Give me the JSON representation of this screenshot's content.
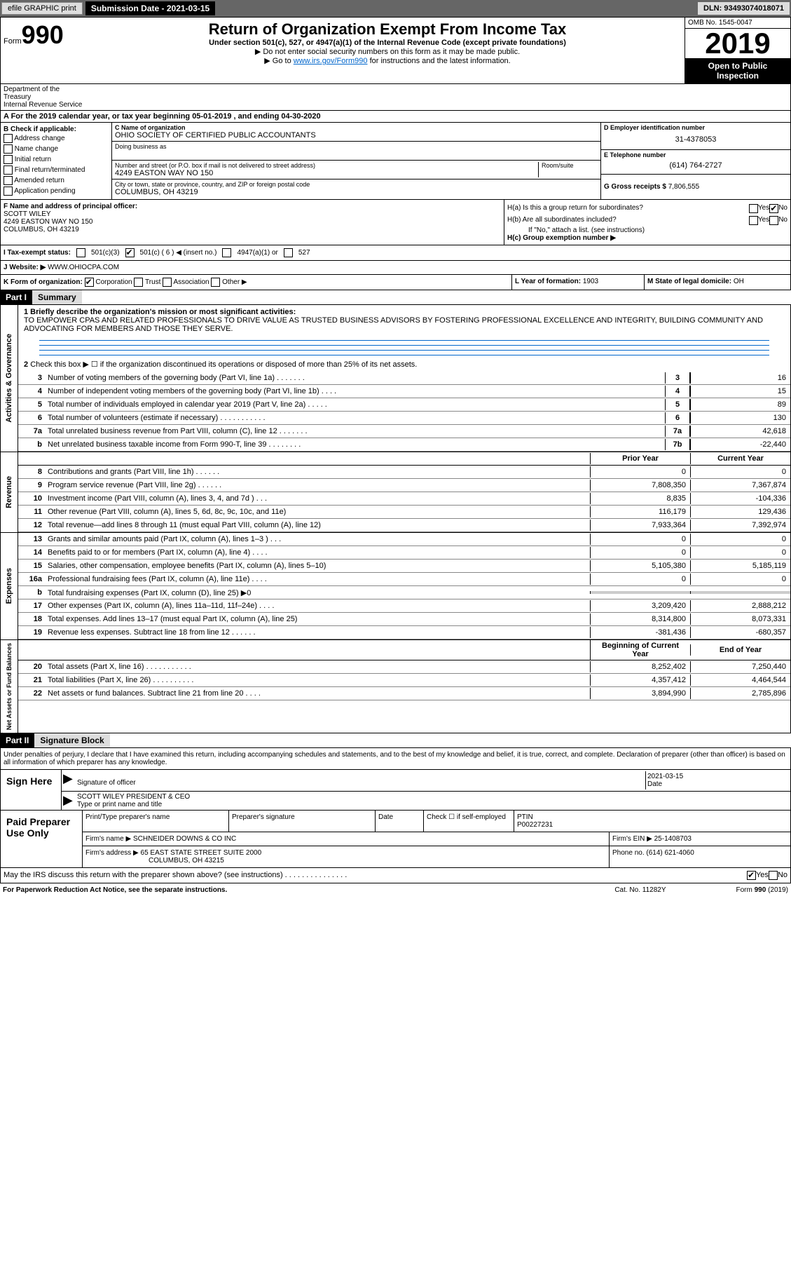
{
  "topbar": {
    "efile": "efile GRAPHIC print",
    "submission_label": "Submission Date - ",
    "submission_date": "2021-03-15",
    "dln": "DLN: 93493074018071"
  },
  "header": {
    "form_word": "Form",
    "form_num": "990",
    "title": "Return of Organization Exempt From Income Tax",
    "subtitle": "Under section 501(c), 527, or 4947(a)(1) of the Internal Revenue Code (except private foundations)",
    "note1": "▶ Do not enter social security numbers on this form as it may be made public.",
    "note2": "▶ Go to ",
    "link": "www.irs.gov/Form990",
    "note2b": " for instructions and the latest information.",
    "omb": "OMB No. 1545-0047",
    "year": "2019",
    "inspection1": "Open to Public",
    "inspection2": "Inspection",
    "dept1": "Department of the Treasury",
    "dept2": "Internal Revenue Service"
  },
  "period": "A For the 2019 calendar year, or tax year beginning 05-01-2019    , and ending 04-30-2020",
  "section_b": {
    "b_label": "B Check if applicable:",
    "checks": [
      "Address change",
      "Name change",
      "Initial return",
      "Final return/terminated",
      "Amended return",
      "Application pending"
    ],
    "c_name_label": "C Name of organization",
    "c_name": "OHIO SOCIETY OF CERTIFIED PUBLIC ACCOUNTANTS",
    "dba_label": "Doing business as",
    "dba": "",
    "addr_label": "Number and street (or P.O. box if mail is not delivered to street address)",
    "room_label": "Room/suite",
    "addr": "4249 EASTON WAY NO 150",
    "city_label": "City or town, state or province, country, and ZIP or foreign postal code",
    "city": "COLUMBUS, OH  43219",
    "d_label": "D Employer identification number",
    "d_val": "31-4378053",
    "e_label": "E Telephone number",
    "e_val": "(614) 764-2727",
    "g_label": "G Gross receipts $ ",
    "g_val": "7,806,555"
  },
  "section_f": {
    "f_label": "F Name and address of principal officer:",
    "f_name": "SCOTT WILEY",
    "f_addr1": "4249 EASTON WAY NO 150",
    "f_addr2": "COLUMBUS, OH  43219",
    "ha_label": "H(a)  Is this a group return for subordinates?",
    "hb_label": "H(b)  Are all subordinates included?",
    "hb_note": "If \"No,\" attach a list. (see instructions)",
    "hc_label": "H(c)  Group exemption number ▶",
    "yes": "Yes",
    "no": "No"
  },
  "status": {
    "i_label": "I   Tax-exempt status:",
    "opts": [
      "501(c)(3)",
      "501(c) ( 6 ) ◀ (insert no.)",
      "4947(a)(1) or",
      "527"
    ]
  },
  "website": {
    "j_label": "J   Website: ▶",
    "val": "WWW.OHIOCPA.COM"
  },
  "k_row": {
    "k_label": "K Form of organization:",
    "opts": [
      "Corporation",
      "Trust",
      "Association",
      "Other ▶"
    ],
    "l_label": "L Year of formation: ",
    "l_val": "1903",
    "m_label": "M State of legal domicile: ",
    "m_val": "OH"
  },
  "part1": {
    "header": "Part I",
    "title": "Summary",
    "line1_label": "1   Briefly describe the organization's mission or most significant activities:",
    "line1_text": "TO EMPOWER CPAS AND RELATED PROFESSIONALS TO DRIVE VALUE AS TRUSTED BUSINESS ADVISORS BY FOSTERING PROFESSIONAL EXCELLENCE AND INTEGRITY, BUILDING COMMUNITY AND ADVOCATING FOR MEMBERS AND THOSE THEY SERVE.",
    "line2": "Check this box ▶ ☐  if the organization discontinued its operations or disposed of more than 25% of its net assets.",
    "prior_header": "Prior Year",
    "current_header": "Current Year",
    "begin_header": "Beginning of Current Year",
    "end_header": "End of Year",
    "sections": {
      "governance": {
        "label": "Activities & Governance"
      },
      "revenue": {
        "label": "Revenue"
      },
      "expenses": {
        "label": "Expenses"
      },
      "netassets": {
        "label": "Net Assets or Fund Balances"
      }
    },
    "lines_gov": [
      {
        "n": "3",
        "t": "Number of voting members of the governing body (Part VI, line 1a)   .    .    .    .    .    .    .",
        "box": "3",
        "c": "16"
      },
      {
        "n": "4",
        "t": "Number of independent voting members of the governing body (Part VI, line 1b)    .    .    .    .",
        "box": "4",
        "c": "15"
      },
      {
        "n": "5",
        "t": "Total number of individuals employed in calendar year 2019 (Part V, line 2a)    .    .    .    .    .",
        "box": "5",
        "c": "89"
      },
      {
        "n": "6",
        "t": "Total number of volunteers (estimate if necessary)   .    .    .    .    .    .    .    .    .    .    .",
        "box": "6",
        "c": "130"
      },
      {
        "n": "7a",
        "t": "Total unrelated business revenue from Part VIII, column (C), line 12   .    .    .    .    .    .    .",
        "box": "7a",
        "c": "42,618"
      },
      {
        "n": "b",
        "t": "Net unrelated business taxable income from Form 990-T, line 39    .    .    .    .    .    .    .    .",
        "box": "7b",
        "c": "-22,440"
      }
    ],
    "lines_rev": [
      {
        "n": "8",
        "t": "Contributions and grants (Part VIII, line 1h)    .    .    .    .    .    .",
        "p": "0",
        "c": "0"
      },
      {
        "n": "9",
        "t": "Program service revenue (Part VIII, line 2g)    .    .    .    .    .    .",
        "p": "7,808,350",
        "c": "7,367,874"
      },
      {
        "n": "10",
        "t": "Investment income (Part VIII, column (A), lines 3, 4, and 7d )    .    .    .",
        "p": "8,835",
        "c": "-104,336"
      },
      {
        "n": "11",
        "t": "Other revenue (Part VIII, column (A), lines 5, 6d, 8c, 9c, 10c, and 11e)",
        "p": "116,179",
        "c": "129,436"
      },
      {
        "n": "12",
        "t": "Total revenue—add lines 8 through 11 (must equal Part VIII, column (A), line 12)",
        "p": "7,933,364",
        "c": "7,392,974"
      }
    ],
    "lines_exp": [
      {
        "n": "13",
        "t": "Grants and similar amounts paid (Part IX, column (A), lines 1–3 )   .    .    .",
        "p": "0",
        "c": "0"
      },
      {
        "n": "14",
        "t": "Benefits paid to or for members (Part IX, column (A), line 4)    .    .    .    .",
        "p": "0",
        "c": "0"
      },
      {
        "n": "15",
        "t": "Salaries, other compensation, employee benefits (Part IX, column (A), lines 5–10)",
        "p": "5,105,380",
        "c": "5,185,119"
      },
      {
        "n": "16a",
        "t": "Professional fundraising fees (Part IX, column (A), line 11e)    .    .    .    .",
        "p": "0",
        "c": "0"
      },
      {
        "n": "b",
        "t": "Total fundraising expenses (Part IX, column (D), line 25) ▶0",
        "p": "",
        "c": "",
        "grey": true
      },
      {
        "n": "17",
        "t": "Other expenses (Part IX, column (A), lines 11a–11d, 11f–24e)    .    .    .    .",
        "p": "3,209,420",
        "c": "2,888,212"
      },
      {
        "n": "18",
        "t": "Total expenses. Add lines 13–17 (must equal Part IX, column (A), line 25)",
        "p": "8,314,800",
        "c": "8,073,331"
      },
      {
        "n": "19",
        "t": "Revenue less expenses. Subtract line 18 from line 12    .    .    .    .    .    .",
        "p": "-381,436",
        "c": "-680,357"
      }
    ],
    "lines_net": [
      {
        "n": "20",
        "t": "Total assets (Part X, line 16)   .    .    .    .    .    .    .    .    .    .    .",
        "p": "8,252,402",
        "c": "7,250,440"
      },
      {
        "n": "21",
        "t": "Total liabilities (Part X, line 26)    .    .    .    .    .    .    .    .    .    .",
        "p": "4,357,412",
        "c": "4,464,544"
      },
      {
        "n": "22",
        "t": "Net assets or fund balances. Subtract line 21 from line 20    .    .    .    .",
        "p": "3,894,990",
        "c": "2,785,896"
      }
    ]
  },
  "part2": {
    "header": "Part II",
    "title": "Signature Block",
    "declare": "Under penalties of perjury, I declare that I have examined this return, including accompanying schedules and statements, and to the best of my knowledge and belief, it is true, correct, and complete. Declaration of preparer (other than officer) is based on all information of which preparer has any knowledge.",
    "sign_label": "Sign Here",
    "sig_officer": "Signature of officer",
    "sig_date": "Date",
    "sig_date_val": "2021-03-15",
    "officer_name": "SCOTT WILEY PRESIDENT & CEO",
    "officer_label": "Type or print name and title",
    "paid_label": "Paid Preparer Use Only",
    "preparer_name_label": "Print/Type preparer's name",
    "preparer_sig_label": "Preparer's signature",
    "date_label": "Date",
    "check_self": "Check ☐ if self-employed",
    "ptin_label": "PTIN",
    "ptin": "P00227231",
    "firm_name_label": "Firm's name     ▶",
    "firm_name": "SCHNEIDER DOWNS & CO INC",
    "firm_ein_label": "Firm's EIN ▶",
    "firm_ein": "25-1408703",
    "firm_addr_label": "Firm's address ▶",
    "firm_addr1": "65 EAST STATE STREET SUITE 2000",
    "firm_addr2": "COLUMBUS, OH  43215",
    "phone_label": "Phone no. ",
    "phone": "(614) 621-4060",
    "discuss": "May the IRS discuss this return with the preparer shown above? (see instructions)    .    .    .    .    .    .    .    .    .    .    .    .    .    .    .",
    "yes": "Yes",
    "no": "No"
  },
  "footer": {
    "paperwork": "For Paperwork Reduction Act Notice, see the separate instructions.",
    "catno": "Cat. No. 11282Y",
    "formno": "Form 990 (2019)"
  }
}
